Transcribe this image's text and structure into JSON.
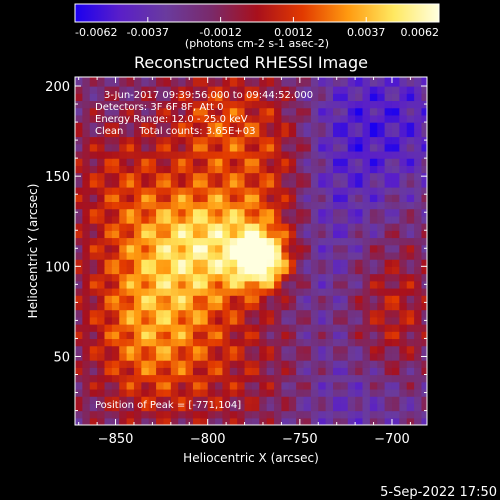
{
  "chart_data": {
    "type": "heatmap",
    "title": "Reconstructed RHESSI Image",
    "xlabel": "Heliocentric X (arcsec)",
    "ylabel": "Heliocentric Y (arcsec)",
    "xlim": [
      -872,
      -681
    ],
    "ylim": [
      12,
      205
    ],
    "xticks": [
      -850,
      -800,
      -750,
      -700
    ],
    "yticks": [
      50,
      100,
      150,
      200
    ],
    "colorbar": {
      "label": "(photons cm-2 s-1 asec-2)",
      "min": -0.0062,
      "max": 0.0062,
      "ticks": [
        "-0.0062",
        "-0.0037",
        "-0.0012",
        "0.0012",
        "0.0037",
        "0.0062"
      ],
      "colors": [
        "#1b00f0",
        "#5a1fc8",
        "#6a3b9e",
        "#7a2a6a",
        "#a8101c",
        "#e23a00",
        "#ff9a10",
        "#ffe860",
        "#ffffe0"
      ]
    },
    "peak": {
      "x": -771,
      "y": 104,
      "value": 0.0062
    },
    "grid": false
  },
  "annotations": {
    "time_range": "3-Jun-2017 09:39:56.000 to 09:44:52.000",
    "detectors": "Detectors: 3F 6F 8F, Att 0",
    "energy": "Energy Range: 12.0 - 25.0 keV",
    "clean": "Clean     Total counts: 3.65E+03",
    "peak_text": "Position of Peak = [-771,104]"
  },
  "footer_date": "5-Sep-2022 17:50"
}
